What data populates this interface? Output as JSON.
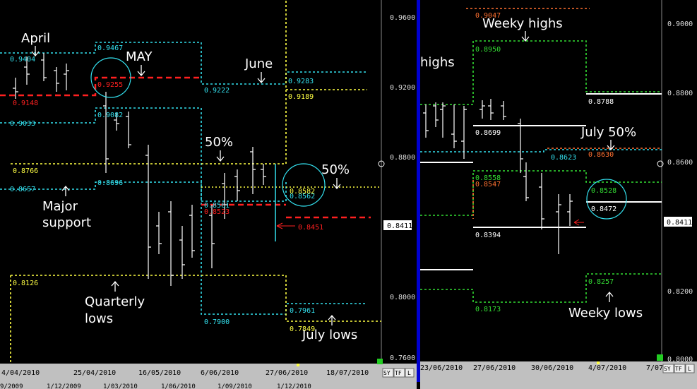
{
  "left": {
    "annotations": {
      "april": "April",
      "may": "MAY",
      "june": "June",
      "fifty_a": "50%",
      "fifty_b": "50%",
      "major": "Major",
      "support": "support",
      "quarterly": "Quarterly",
      "lows": "lows",
      "july_lows": "July lows"
    },
    "labels": {
      "l9467": "0.9467",
      "l9404": "0.9404",
      "l9255": "0.9255",
      "l9148": "0.9148",
      "l9082": "0.9082",
      "l9033": "0.9033",
      "l9222": "0.9222",
      "l9283": "0.9283",
      "l9189": "0.9189",
      "l8766": "0.8766",
      "l8657": "0.8657",
      "l8696": "0.8696",
      "l8523": "0.8523",
      "l8561": "0.8561",
      "l8451": "0.8451",
      "l8126": "0.8126",
      "l7961": "0.7961",
      "l7900": "0.7900",
      "l7849": "0.7849",
      "l8582": "0.8582",
      "l8562": "0.8562"
    },
    "yaxis": [
      "0.9600",
      "0.9200",
      "0.8800",
      "0.8411",
      "0.8000",
      "0.7600"
    ],
    "xaxis": [
      "4/04/2010",
      "25/04/2010",
      "16/05/2010",
      "6/06/2010",
      "27/06/2010",
      "18/07/2010"
    ],
    "overview": [
      "9/2009",
      "1/12/2009",
      "1/03/2010",
      "1/06/2010",
      "1/09/2010",
      "1/12/2010"
    ],
    "buttons": [
      "SY",
      "TF",
      "L"
    ]
  },
  "right": {
    "annotations": {
      "weekly_highs": "Weeky highs",
      "highs_partial": "highs",
      "july50": "July 50%",
      "weekly_lows": "Weeky lows"
    },
    "labels": {
      "r9047": "0.9047",
      "r8950": "0.8950",
      "r8788": "0.8788",
      "r8699": "0.8699",
      "r8630": "0.8630",
      "r8623": "0.8623",
      "r8558": "0.8558",
      "r8547": "0.8547",
      "r8528": "0.8528",
      "r8472": "0.8472",
      "r8394": "0.8394",
      "r8257": "0.8257",
      "r8173": "0.8173"
    },
    "yaxis": [
      "0.9000",
      "0.8800",
      "0.8600",
      "0.8411",
      "0.8200",
      "0.8000"
    ],
    "xaxis": [
      "23/06/2010",
      "27/06/2010",
      "30/06/2010",
      "4/07/2010",
      "7/07/"
    ],
    "buttons": [
      "SY",
      "TF",
      "L"
    ]
  },
  "colors": {
    "cyan": "#33e0ee",
    "red": "#ff2020",
    "yellow": "#ffff44",
    "green": "#33dd33",
    "orange": "#ff7030",
    "white": "#ffffff"
  }
}
